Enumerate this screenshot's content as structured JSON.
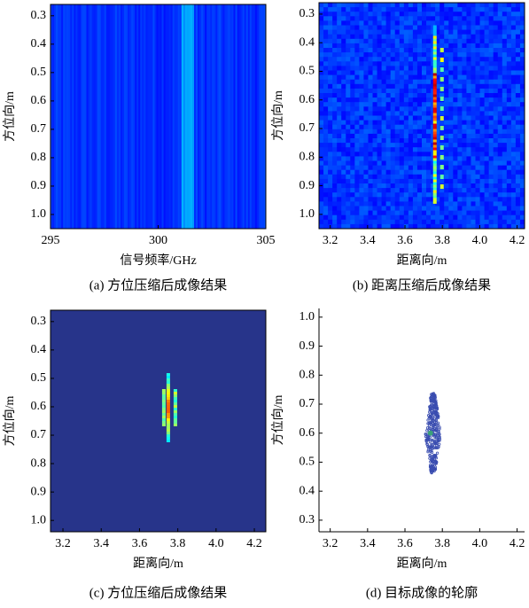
{
  "chart_data": [
    {
      "type": "heatmap",
      "xlabel": "信号频率/GHz",
      "ylabel": "方位向/m",
      "caption": "(a) 方位压缩后成像结果",
      "xlim": [
        295,
        305
      ],
      "ylim": [
        0.26,
        1.05
      ],
      "y_inverted": true,
      "xticks": [
        295,
        300,
        305
      ],
      "yticks": [
        0.3,
        0.4,
        0.5,
        0.6,
        0.7,
        0.8,
        0.9,
        {
          "value": 1,
          "label": "1.0"
        }
      ],
      "color": "#2b48b8"
    },
    {
      "type": "heatmap",
      "xlabel": "距离向/m",
      "ylabel": "方位向/m",
      "caption": "(b) 距离压缩后成像结果",
      "xlim": [
        3.14,
        4.24
      ],
      "ylim": [
        0.26,
        1.05
      ],
      "y_inverted": true,
      "xticks": [
        3.2,
        3.4,
        3.6,
        3.8,
        {
          "value": 4,
          "label": "4.0"
        },
        4.2
      ],
      "yticks": [
        0.3,
        0.4,
        0.5,
        0.6,
        0.7,
        0.8,
        0.9,
        {
          "value": 1,
          "label": "1.0"
        }
      ],
      "color": "#2547a8"
    },
    {
      "type": "heatmap",
      "xlabel": "距离向/m",
      "ylabel": "方位向/m",
      "caption": "(c) 方位压缩后成像结果",
      "xlim": [
        3.135,
        4.26
      ],
      "ylim": [
        0.26,
        1.04
      ],
      "y_inverted": true,
      "xticks": [
        3.2,
        3.4,
        3.6,
        3.8,
        {
          "value": 4,
          "label": "4.0"
        },
        4.2
      ],
      "yticks": [
        0.3,
        0.4,
        0.5,
        0.6,
        0.7,
        0.8,
        0.9,
        {
          "value": 1,
          "label": "1.0"
        }
      ],
      "color": "#27348a"
    },
    {
      "type": "contour",
      "xlabel": "距离向/m",
      "ylabel": "方位向/m",
      "caption": "(d) 目标成像的轮廓",
      "xlim": [
        3.14,
        4.24
      ],
      "ylim": [
        0.26,
        1.03
      ],
      "y_inverted": false,
      "xticks": [
        3.2,
        3.4,
        3.6,
        3.8,
        {
          "value": 4,
          "label": "4.0"
        },
        4.2
      ],
      "yticks": [
        0.3,
        0.4,
        0.5,
        0.6,
        0.7,
        0.8,
        0.9,
        {
          "value": 1,
          "label": "1.0"
        }
      ],
      "color": "#3a4db0"
    }
  ]
}
